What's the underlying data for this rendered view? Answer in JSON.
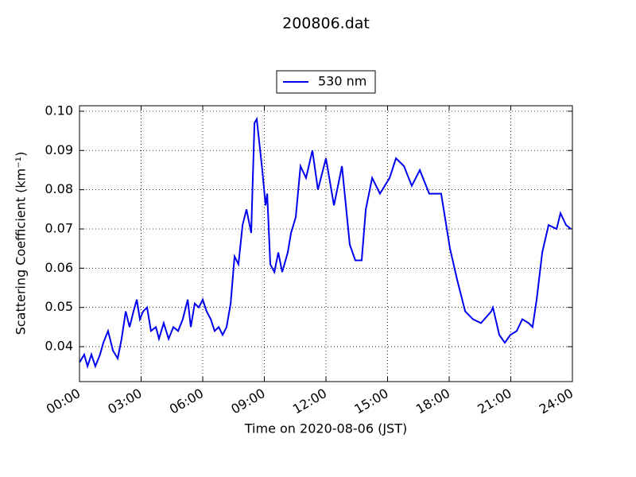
{
  "chart_data": {
    "type": "line",
    "title": "200806.dat",
    "x_label": "Time on 2020-08-06 (JST)",
    "y_label": "Scattering Coefficient (km⁻¹)",
    "legend": "top-center",
    "grid": true,
    "xlim": [
      0,
      24
    ],
    "xticks": [
      {
        "value": 0,
        "label": "00:00"
      },
      {
        "value": 3,
        "label": "03:00"
      },
      {
        "value": 6,
        "label": "06:00"
      },
      {
        "value": 9,
        "label": "09:00"
      },
      {
        "value": 12,
        "label": "12:00"
      },
      {
        "value": 15,
        "label": "15:00"
      },
      {
        "value": 18,
        "label": "18:00"
      },
      {
        "value": 21,
        "label": "21:00"
      },
      {
        "value": 24,
        "label": "24:00"
      }
    ],
    "ylim": [
      0.0311,
      0.1014
    ],
    "yticks": [
      0.04,
      0.05,
      0.06,
      0.07,
      0.08,
      0.09,
      {
        "value": 0.1,
        "label": "0.10"
      }
    ],
    "x": [
      0,
      0.23,
      0.39,
      0.58,
      0.77,
      1.0,
      1.16,
      1.39,
      1.63,
      1.86,
      2.05,
      2.25,
      2.44,
      2.63,
      2.79,
      2.94,
      3.1,
      3.29,
      3.48,
      3.72,
      3.87,
      4.1,
      4.34,
      4.57,
      4.8,
      5.03,
      5.27,
      5.42,
      5.61,
      5.81,
      6.0,
      6.19,
      6.39,
      6.58,
      6.78,
      6.97,
      7.16,
      7.36,
      7.55,
      7.74,
      7.94,
      8.13,
      8.36,
      8.52,
      8.63,
      8.9,
      9.06,
      9.14,
      9.29,
      9.49,
      9.68,
      9.87,
      10.14,
      10.3,
      10.53,
      10.76,
      11.03,
      11.34,
      11.61,
      12.0,
      12.39,
      12.78,
      13.16,
      13.43,
      13.74,
      13.94,
      14.25,
      14.63,
      15.1,
      15.41,
      15.8,
      16.18,
      16.57,
      17.03,
      17.61,
      18.04,
      18.39,
      18.78,
      19.16,
      19.55,
      20.05,
      20.13,
      20.44,
      20.71,
      20.98,
      21.29,
      21.56,
      21.87,
      22.06,
      22.26,
      22.53,
      22.84,
      23.23,
      23.42,
      23.69,
      23.93
    ],
    "series": [
      {
        "name": "530 nm",
        "color": "#0000ee",
        "values": [
          0.036,
          0.038,
          0.035,
          0.038,
          0.035,
          0.038,
          0.041,
          0.044,
          0.039,
          0.037,
          0.042,
          0.049,
          0.045,
          0.049,
          0.052,
          0.047,
          0.049,
          0.05,
          0.044,
          0.045,
          0.042,
          0.046,
          0.042,
          0.045,
          0.044,
          0.047,
          0.052,
          0.045,
          0.051,
          0.05,
          0.052,
          0.049,
          0.047,
          0.044,
          0.045,
          0.043,
          0.045,
          0.051,
          0.063,
          0.061,
          0.071,
          0.075,
          0.069,
          0.097,
          0.098,
          0.085,
          0.076,
          0.079,
          0.061,
          0.059,
          0.064,
          0.059,
          0.064,
          0.069,
          0.073,
          0.086,
          0.083,
          0.09,
          0.08,
          0.088,
          0.076,
          0.086,
          0.066,
          0.062,
          0.062,
          0.075,
          0.083,
          0.079,
          0.083,
          0.088,
          0.086,
          0.081,
          0.085,
          0.079,
          0.079,
          0.065,
          0.057,
          0.049,
          0.047,
          0.046,
          0.049,
          0.05,
          0.043,
          0.041,
          0.043,
          0.044,
          0.047,
          0.046,
          0.045,
          0.052,
          0.064,
          0.071,
          0.07,
          0.074,
          0.071,
          0.07
        ]
      }
    ]
  }
}
